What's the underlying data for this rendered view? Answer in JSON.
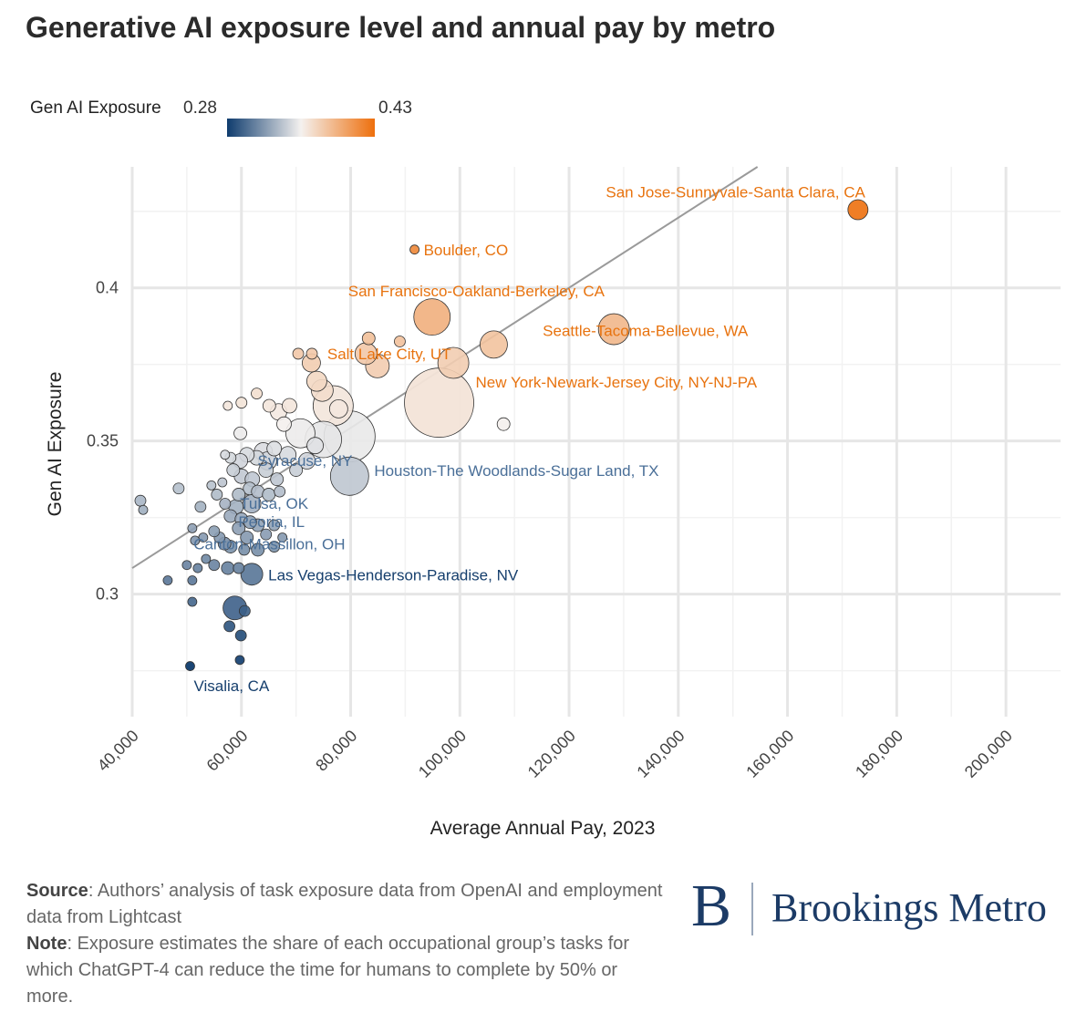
{
  "title": "Generative AI exposure level and annual pay by metro",
  "legend": {
    "label": "Gen AI Exposure",
    "min_label": "0.28",
    "max_label": "0.43",
    "color_low": "#0f3c6e",
    "color_mid": "#f4f1ef",
    "color_high": "#ee6f0c"
  },
  "footer": {
    "source_label": "Source",
    "source_text": ": Authors’ analysis of task exposure data from OpenAI and employment data from Lightcast",
    "note_label": "Note",
    "note_text": ": Exposure estimates the share of each occupational group’s tasks for which ChatGPT-4 can reduce the time for humans to complete by 50% or more."
  },
  "logo": {
    "letter": "B",
    "name": "Brookings Metro"
  },
  "chart_data": {
    "type": "scatter",
    "xlabel": "Average Annual Pay, 2023",
    "ylabel": "Gen AI Exposure",
    "xlim": [
      40000,
      210000
    ],
    "ylim": [
      0.26,
      0.4395
    ],
    "x_ticks": [
      40000,
      60000,
      80000,
      100000,
      120000,
      140000,
      160000,
      180000,
      200000
    ],
    "x_tick_labels": [
      "40,000",
      "60,000",
      "80,000",
      "100,000",
      "120,000",
      "140,000",
      "160,000",
      "180,000",
      "200,000"
    ],
    "y_ticks": [
      0.3,
      0.35,
      0.4
    ],
    "y_tick_labels": [
      "0.3",
      "0.35",
      "0.4"
    ],
    "grid": true,
    "trend_line": {
      "x": [
        40000,
        154500
      ],
      "y": [
        0.3085,
        0.4395
      ]
    },
    "color_range": [
      0.28,
      0.43
    ],
    "labeled_points": [
      {
        "label": "San Jose-Sunnyvale-Santa Clara, CA",
        "x": 172900,
        "y": 0.4255,
        "size": 11
      },
      {
        "label": "Boulder, CO",
        "x": 91700,
        "y": 0.4125,
        "size": 5
      },
      {
        "label": "San Francisco-Oakland-Berkeley, CA",
        "x": 94900,
        "y": 0.3905,
        "size": 20
      },
      {
        "label": "Seattle-Tacoma-Bellevue, WA",
        "x": 128200,
        "y": 0.3865,
        "size": 17
      },
      {
        "label": "Salt Lake City, UT",
        "x": 84900,
        "y": 0.3745,
        "size": 13
      },
      {
        "label": "New York-Newark-Jersey City, NY-NJ-PA",
        "x": 96200,
        "y": 0.3625,
        "size": 38
      },
      {
        "label": "Syracuse, NY",
        "x": 64800,
        "y": 0.3435,
        "size": 10
      },
      {
        "label": "Houston-The Woodlands-Sugar Land, TX",
        "x": 79800,
        "y": 0.3385,
        "size": 21
      },
      {
        "label": "Tulsa, OK",
        "x": 61900,
        "y": 0.3295,
        "size": 10
      },
      {
        "label": "Peoria, IL",
        "x": 61600,
        "y": 0.3235,
        "size": 7
      },
      {
        "label": "Canton-Massillon, OH",
        "x": 56900,
        "y": 0.3165,
        "size": 7
      },
      {
        "label": "Las Vegas-Henderson-Paradise, NV",
        "x": 61900,
        "y": 0.3065,
        "size": 12
      },
      {
        "label": "Visalia, CA",
        "x": 50600,
        "y": 0.2765,
        "size": 5
      }
    ],
    "points": [
      {
        "x": 108000,
        "y": 0.3555,
        "size": 7
      },
      {
        "x": 79800,
        "y": 0.3515,
        "size": 28
      },
      {
        "x": 76800,
        "y": 0.3615,
        "size": 22
      },
      {
        "x": 74800,
        "y": 0.3665,
        "size": 12
      },
      {
        "x": 73800,
        "y": 0.3695,
        "size": 11
      },
      {
        "x": 72800,
        "y": 0.3755,
        "size": 10
      },
      {
        "x": 70400,
        "y": 0.3785,
        "size": 6
      },
      {
        "x": 72900,
        "y": 0.3785,
        "size": 6
      },
      {
        "x": 83300,
        "y": 0.3835,
        "size": 7
      },
      {
        "x": 89000,
        "y": 0.3825,
        "size": 6
      },
      {
        "x": 106200,
        "y": 0.3815,
        "size": 15
      },
      {
        "x": 98800,
        "y": 0.3755,
        "size": 17
      },
      {
        "x": 82800,
        "y": 0.3785,
        "size": 12
      },
      {
        "x": 77800,
        "y": 0.3605,
        "size": 10
      },
      {
        "x": 75000,
        "y": 0.3505,
        "size": 20
      },
      {
        "x": 70800,
        "y": 0.3525,
        "size": 16
      },
      {
        "x": 68800,
        "y": 0.3615,
        "size": 8
      },
      {
        "x": 66800,
        "y": 0.3595,
        "size": 9
      },
      {
        "x": 65100,
        "y": 0.3615,
        "size": 7
      },
      {
        "x": 62800,
        "y": 0.3655,
        "size": 6
      },
      {
        "x": 60000,
        "y": 0.3625,
        "size": 6
      },
      {
        "x": 57500,
        "y": 0.3615,
        "size": 5
      },
      {
        "x": 59800,
        "y": 0.3525,
        "size": 7
      },
      {
        "x": 67800,
        "y": 0.3555,
        "size": 8
      },
      {
        "x": 66000,
        "y": 0.3475,
        "size": 8
      },
      {
        "x": 64000,
        "y": 0.3465,
        "size": 10
      },
      {
        "x": 62800,
        "y": 0.3445,
        "size": 8
      },
      {
        "x": 61000,
        "y": 0.3455,
        "size": 8
      },
      {
        "x": 59800,
        "y": 0.3435,
        "size": 8
      },
      {
        "x": 58000,
        "y": 0.3445,
        "size": 6
      },
      {
        "x": 57000,
        "y": 0.3455,
        "size": 5
      },
      {
        "x": 58500,
        "y": 0.3405,
        "size": 7
      },
      {
        "x": 60000,
        "y": 0.3385,
        "size": 8
      },
      {
        "x": 62000,
        "y": 0.3375,
        "size": 8
      },
      {
        "x": 64500,
        "y": 0.3405,
        "size": 8
      },
      {
        "x": 66500,
        "y": 0.3375,
        "size": 7
      },
      {
        "x": 68500,
        "y": 0.3455,
        "size": 9
      },
      {
        "x": 72000,
        "y": 0.3435,
        "size": 9
      },
      {
        "x": 73500,
        "y": 0.3485,
        "size": 9
      },
      {
        "x": 70000,
        "y": 0.3405,
        "size": 7
      },
      {
        "x": 61500,
        "y": 0.3345,
        "size": 7
      },
      {
        "x": 63000,
        "y": 0.3335,
        "size": 7
      },
      {
        "x": 65000,
        "y": 0.3325,
        "size": 7
      },
      {
        "x": 67000,
        "y": 0.3335,
        "size": 6
      },
      {
        "x": 59500,
        "y": 0.3325,
        "size": 7
      },
      {
        "x": 57000,
        "y": 0.3295,
        "size": 6
      },
      {
        "x": 55500,
        "y": 0.3325,
        "size": 6
      },
      {
        "x": 54500,
        "y": 0.3355,
        "size": 5
      },
      {
        "x": 56500,
        "y": 0.3365,
        "size": 5
      },
      {
        "x": 59000,
        "y": 0.3285,
        "size": 8
      },
      {
        "x": 58000,
        "y": 0.3255,
        "size": 7
      },
      {
        "x": 60000,
        "y": 0.3245,
        "size": 7
      },
      {
        "x": 59500,
        "y": 0.3215,
        "size": 7
      },
      {
        "x": 61000,
        "y": 0.3185,
        "size": 7
      },
      {
        "x": 63000,
        "y": 0.3225,
        "size": 7
      },
      {
        "x": 64500,
        "y": 0.3195,
        "size": 6
      },
      {
        "x": 66000,
        "y": 0.3225,
        "size": 6
      },
      {
        "x": 67500,
        "y": 0.3185,
        "size": 5
      },
      {
        "x": 66000,
        "y": 0.3155,
        "size": 6
      },
      {
        "x": 63000,
        "y": 0.3145,
        "size": 7
      },
      {
        "x": 60500,
        "y": 0.3145,
        "size": 6
      },
      {
        "x": 58000,
        "y": 0.3155,
        "size": 7
      },
      {
        "x": 56000,
        "y": 0.3185,
        "size": 6
      },
      {
        "x": 55000,
        "y": 0.3205,
        "size": 6
      },
      {
        "x": 53000,
        "y": 0.3185,
        "size": 5
      },
      {
        "x": 51500,
        "y": 0.3175,
        "size": 5
      },
      {
        "x": 51000,
        "y": 0.3215,
        "size": 5
      },
      {
        "x": 52500,
        "y": 0.3285,
        "size": 6
      },
      {
        "x": 48500,
        "y": 0.3345,
        "size": 6
      },
      {
        "x": 41500,
        "y": 0.3305,
        "size": 6
      },
      {
        "x": 42000,
        "y": 0.3275,
        "size": 5
      },
      {
        "x": 53500,
        "y": 0.3115,
        "size": 5
      },
      {
        "x": 55000,
        "y": 0.3095,
        "size": 6
      },
      {
        "x": 57500,
        "y": 0.3085,
        "size": 7
      },
      {
        "x": 59500,
        "y": 0.3085,
        "size": 6
      },
      {
        "x": 50000,
        "y": 0.3095,
        "size": 5
      },
      {
        "x": 52000,
        "y": 0.3085,
        "size": 5
      },
      {
        "x": 46500,
        "y": 0.3045,
        "size": 5
      },
      {
        "x": 51000,
        "y": 0.3045,
        "size": 5
      },
      {
        "x": 51000,
        "y": 0.2975,
        "size": 5
      },
      {
        "x": 58800,
        "y": 0.2955,
        "size": 13
      },
      {
        "x": 60600,
        "y": 0.2945,
        "size": 6
      },
      {
        "x": 57800,
        "y": 0.2895,
        "size": 6
      },
      {
        "x": 59900,
        "y": 0.2865,
        "size": 6
      },
      {
        "x": 59700,
        "y": 0.2785,
        "size": 5
      }
    ]
  }
}
